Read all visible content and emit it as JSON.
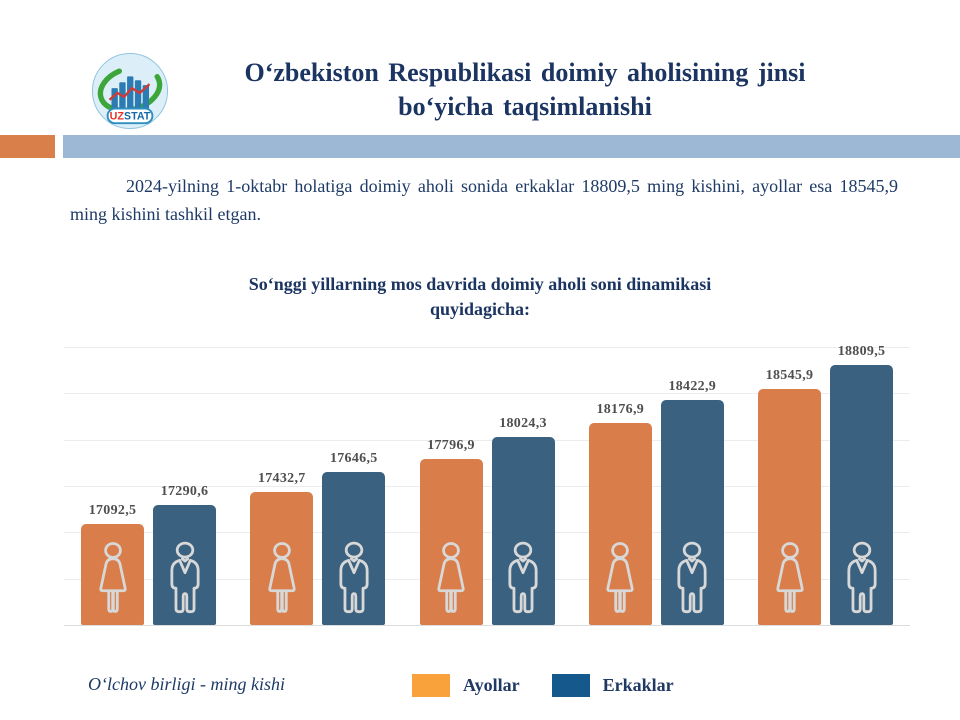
{
  "slide": {
    "logo": {
      "uz": "UZ",
      "stat": "STAT"
    },
    "title_line1": "Oʻzbekiston Respublikasi doimiy aholisining jinsi",
    "title_line2": "boʻyicha taqsimlanishi",
    "intro_text": "2024-yilning 1-oktabr holatiga doimiy aholi sonida erkaklar 18809,5 ming kishini, ayollar esa 18545,9 ming kishini tashkil etgan.",
    "subtitle_line1": "Soʻnggi yillarning mos davrida doimiy aholi soni dinamikasi",
    "subtitle_line2": "quyidagicha:",
    "footnote": "Oʻlchov birligi - ming kishi"
  },
  "legend": {
    "ayollar": "Ayollar",
    "erkaklar": "Erkaklar"
  },
  "colors": {
    "bar_ayollar": "#D97E4A",
    "bar_erkaklar": "#3A617F",
    "legend_ayollar": "#F9A23C",
    "legend_erkaklar": "#15598C",
    "band_blue": "#9DB8D4",
    "accent_orange": "#D9804A",
    "title_navy": "#1B3461",
    "text_navy": "#1E3A66",
    "bar_label_gray": "#4F4F4F",
    "icon_stroke": "#D8D8D8"
  },
  "chart_data": {
    "type": "bar",
    "title": "Soʻnggi yillarning mos davrida doimiy aholi soni dinamikasi quyidagicha:",
    "xlabel": "",
    "ylabel": "",
    "unit": "ming kishi",
    "categories": [
      "",
      "",
      "",
      "",
      ""
    ],
    "series": [
      {
        "key": "ayollar",
        "name": "Ayollar",
        "icon": "woman-icon",
        "values": [
          17092.5,
          17432.7,
          17796.9,
          18176.9,
          18545.9
        ],
        "labels": [
          "17092,5",
          "17432,7",
          "17796,9",
          "18176,9",
          "18545,9"
        ]
      },
      {
        "key": "erkaklar",
        "name": "Erkaklar",
        "icon": "man-icon",
        "values": [
          17290.6,
          17646.5,
          18024.3,
          18422.9,
          18809.5
        ],
        "labels": [
          "17290,6",
          "17646,5",
          "18024,3",
          "18422,9",
          "18809,5"
        ]
      }
    ],
    "ylim": [
      16000,
      19000
    ],
    "grid_step": 500,
    "grid": true,
    "legend_position": "bottom",
    "tick_labels_visible": false
  }
}
